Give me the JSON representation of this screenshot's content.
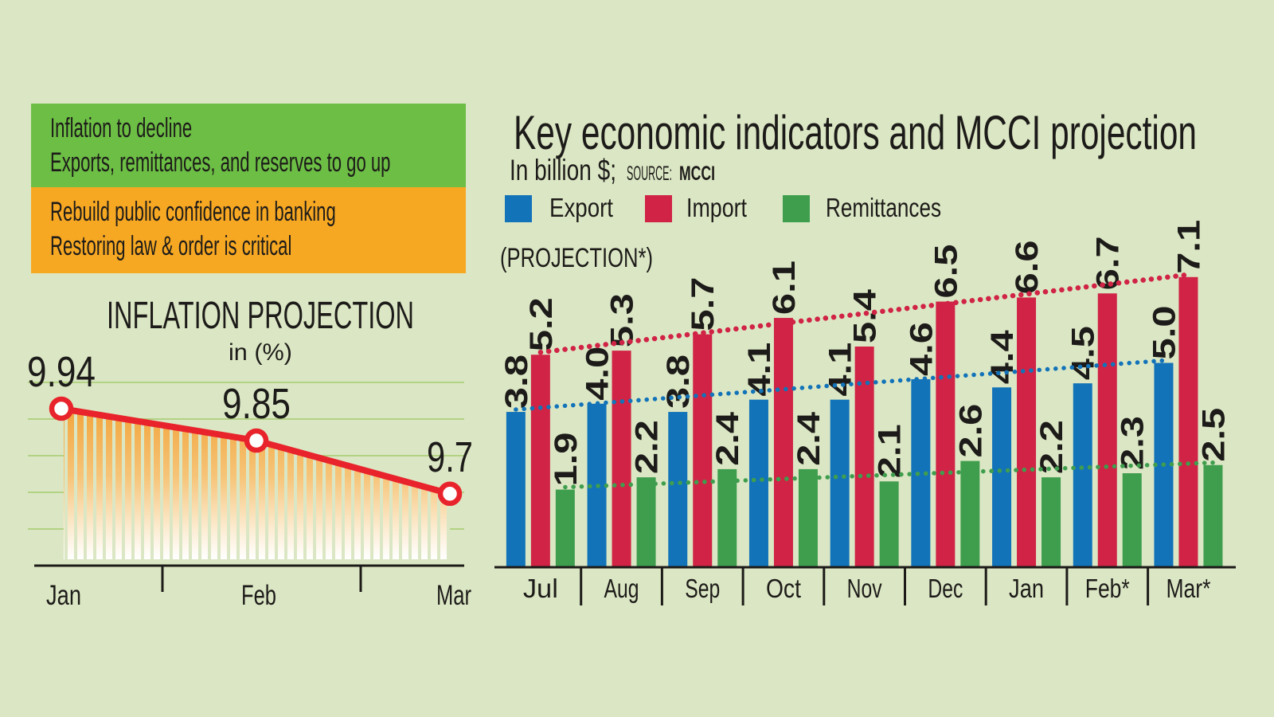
{
  "background_color": "#dbe7c4",
  "text_color": "#1d1b19",
  "callouts": {
    "green_box": {
      "color": "#6cbe45",
      "lines": [
        "Inflation to decline",
        "Exports, remittances, and reserves to go up"
      ]
    },
    "orange_box": {
      "color": "#f7a823",
      "lines": [
        "Rebuild public confidence in banking",
        "Restoring law & order is critical"
      ]
    }
  },
  "right": {
    "unit_label": "In billion $;",
    "source_label": "SOURCE:",
    "source_value": "MCCI",
    "projection_note": "(PROJECTION*)"
  },
  "chart_data": [
    {
      "type": "line",
      "title": "INFLATION PROJECTION",
      "subtitle": "in (%)",
      "categories": [
        "Jan",
        "Feb",
        "Mar"
      ],
      "values": [
        9.94,
        9.85,
        9.7
      ],
      "line_color": "#e8232b",
      "marker_style": "white circle with red ring",
      "area_style": "vertical orange stripes fading to white",
      "area_top_color": "#f2a53c",
      "grid": true,
      "gridline_color": "#b2d284",
      "ylim": [
        9.46,
        10.0
      ]
    },
    {
      "type": "bar",
      "title": "Key economic indicators and MCCI projection",
      "unit": "billion $",
      "source": "MCCI",
      "categories": [
        "Jul",
        "Aug",
        "Sep",
        "Oct",
        "Nov",
        "Dec",
        "Jan",
        "Feb*",
        "Mar*"
      ],
      "series": [
        {
          "name": "Export",
          "color": "#1273b9",
          "values": [
            3.8,
            4.0,
            3.8,
            4.1,
            4.1,
            4.6,
            4.4,
            4.5,
            5.0
          ]
        },
        {
          "name": "Import",
          "color": "#d02345",
          "values": [
            5.2,
            5.3,
            5.7,
            6.1,
            5.4,
            6.5,
            6.6,
            6.7,
            7.1
          ]
        },
        {
          "name": "Remittances",
          "color": "#3f9e4e",
          "values": [
            1.9,
            2.2,
            2.4,
            2.4,
            2.1,
            2.6,
            2.2,
            2.3,
            2.5
          ]
        }
      ],
      "trend_lines": "straight dotted line per series from first to last bar top",
      "legend_position": "top",
      "ylim": [
        0,
        7.5
      ]
    }
  ]
}
